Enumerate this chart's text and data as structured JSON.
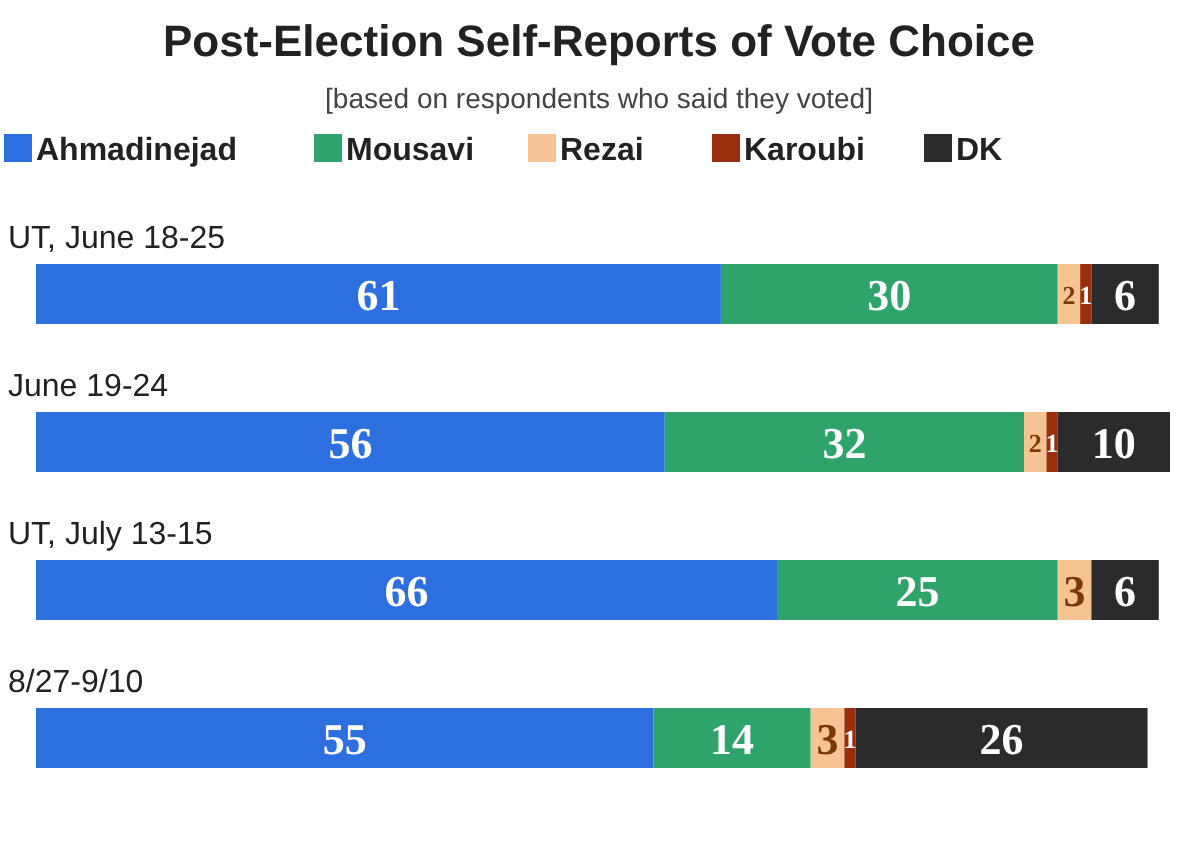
{
  "chart_data": {
    "type": "bar",
    "orientation": "horizontal",
    "stacked": true,
    "title": "Post-Election Self-Reports of Vote Choice",
    "subtitle": "[based on respondents who said they voted]",
    "categories": [
      "UT, June 18-25",
      "June 19-24",
      "UT, July 13-15",
      "8/27-9/10"
    ],
    "series": [
      {
        "name": "Ahmadinejad",
        "color": "#2e6fe0",
        "values": [
          61,
          56,
          66,
          55
        ]
      },
      {
        "name": "Mousavi",
        "color": "#2ea36a",
        "values": [
          30,
          32,
          25,
          14
        ]
      },
      {
        "name": "Rezai",
        "color": "#f6c393",
        "values": [
          2,
          2,
          3,
          3
        ]
      },
      {
        "name": "Karoubi",
        "color": "#9a2e0c",
        "values": [
          1,
          1,
          null,
          1
        ]
      },
      {
        "name": "DK",
        "color": "#2b2b2b",
        "values": [
          6,
          10,
          6,
          26
        ]
      }
    ],
    "data_labels": true,
    "legend": "top left"
  }
}
